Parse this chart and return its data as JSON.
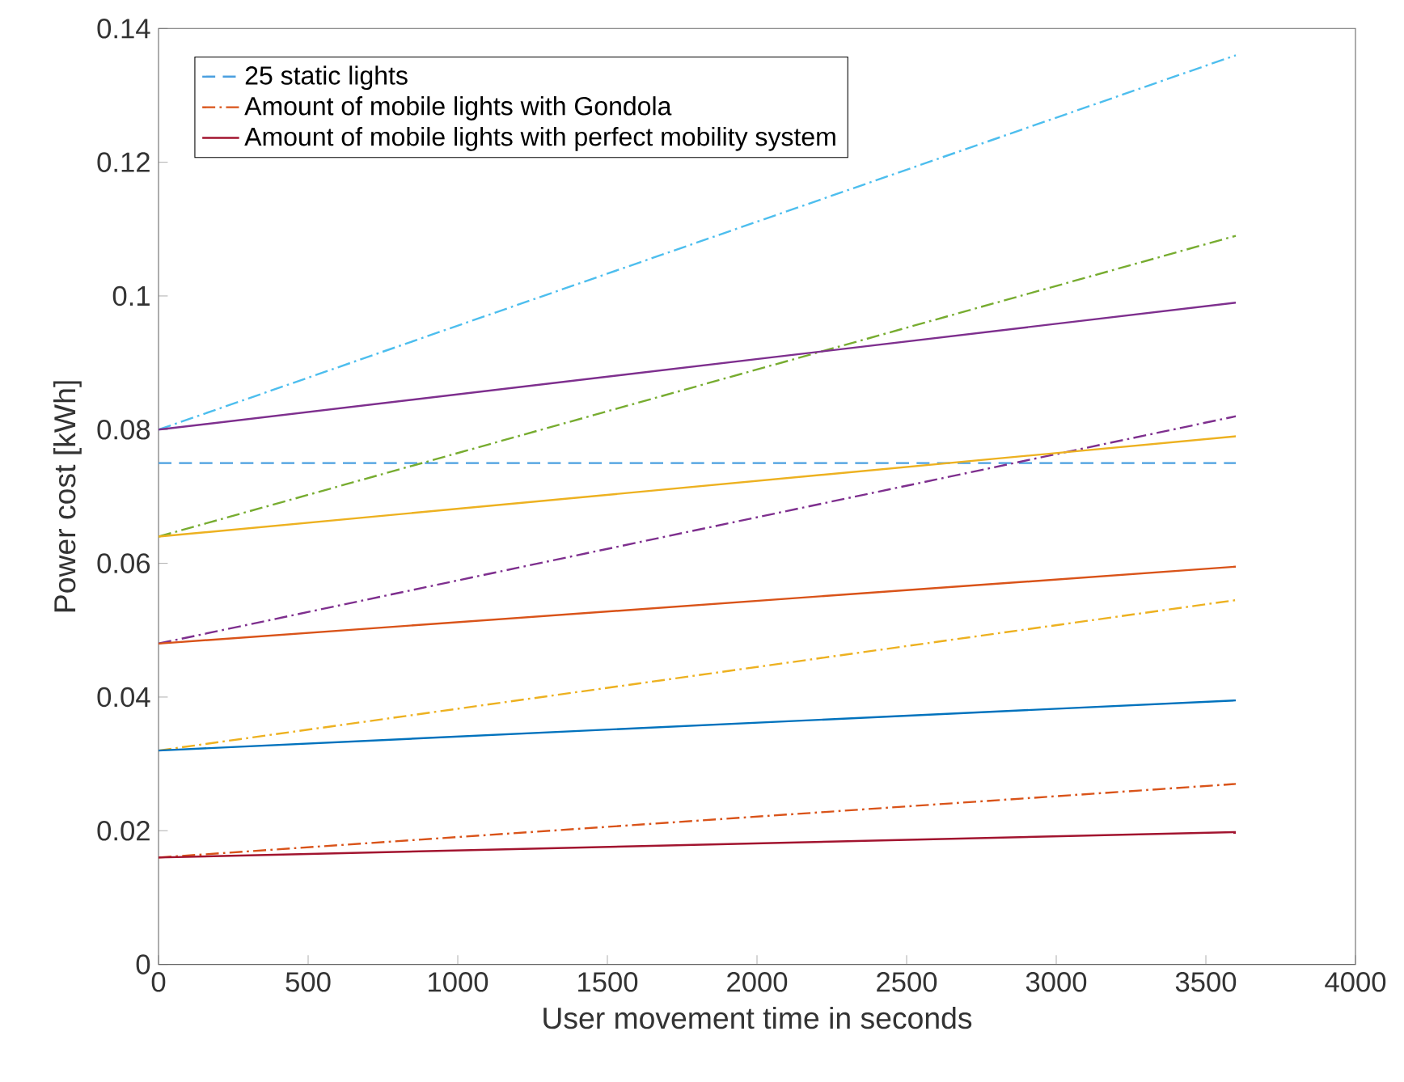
{
  "chart_data": {
    "type": "line",
    "xlabel": "User movement time in seconds",
    "ylabel": "Power cost [kWh]",
    "x": [
      0,
      3600
    ],
    "xlim": [
      0,
      4000
    ],
    "xticks": [
      0,
      500,
      1000,
      1500,
      2000,
      2500,
      3000,
      3500,
      4000
    ],
    "ylim": [
      0,
      0.14
    ],
    "yticks": [
      0,
      0.02,
      0.04,
      0.06,
      0.08,
      0.1,
      0.12,
      0.14
    ],
    "grid": false,
    "legend": "top left",
    "marker": "none",
    "series": [
      {
        "name": "25 static lights",
        "color": "#4a9fe0",
        "line_style": "dashed",
        "values": [
          0.075,
          0.075
        ]
      },
      {
        "name": "Amount of mobile lights with Gondola",
        "color": "#D95319",
        "line_style": "dashdot",
        "values": [
          0.016,
          0.027
        ]
      },
      {
        "name": "Amount of mobile lights with perfect mobility system",
        "color": "#A2142F",
        "line_style": "solid",
        "values": [
          0.016,
          0.0198
        ]
      },
      {
        "color": "#EDB120",
        "line_style": "dashdot",
        "values": [
          0.032,
          0.0545
        ]
      },
      {
        "color": "#7E2F8E",
        "line_style": "dashdot",
        "values": [
          0.048,
          0.082
        ]
      },
      {
        "color": "#77AC30",
        "line_style": "dashdot",
        "values": [
          0.064,
          0.109
        ]
      },
      {
        "color": "#4DBEEE",
        "line_style": "dashdot",
        "values": [
          0.08,
          0.136
        ]
      },
      {
        "color": "#0072BD",
        "line_style": "solid",
        "values": [
          0.032,
          0.0395
        ]
      },
      {
        "color": "#D95319",
        "line_style": "solid",
        "values": [
          0.048,
          0.0595
        ]
      },
      {
        "color": "#EDB120",
        "line_style": "solid",
        "values": [
          0.064,
          0.079
        ]
      },
      {
        "color": "#7E2F8E",
        "line_style": "solid",
        "values": [
          0.08,
          0.099
        ]
      }
    ]
  }
}
